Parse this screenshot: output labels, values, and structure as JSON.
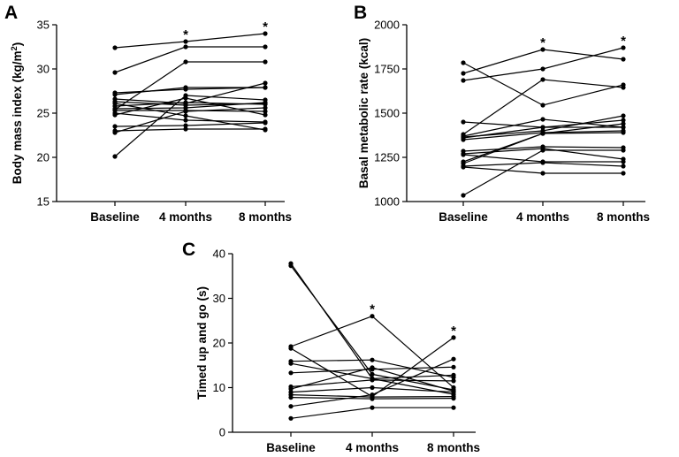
{
  "chart_data": [
    {
      "panel": "A",
      "type": "line",
      "ylabel": "Body mass index (kg/m²)",
      "ylabel_main": "Body mass index (kg/m",
      "ylabel_sup": "2",
      "ylabel_end": ")",
      "categories": [
        "Baseline",
        "4 months",
        "8 months"
      ],
      "ylim": [
        15,
        35
      ],
      "yticks": [
        15,
        20,
        25,
        30,
        35
      ],
      "significance": [
        "",
        "*",
        "*"
      ],
      "series": [
        {
          "name": "1",
          "values": [
            32.4,
            33.1,
            34.0
          ]
        },
        {
          "name": "2",
          "values": [
            29.6,
            32.5,
            32.5
          ]
        },
        {
          "name": "3",
          "values": [
            25.4,
            30.8,
            30.8
          ]
        },
        {
          "name": "4",
          "values": [
            27.3,
            27.7,
            27.9
          ]
        },
        {
          "name": "5",
          "values": [
            27.1,
            27.9,
            27.9
          ]
        },
        {
          "name": "6",
          "values": [
            26.6,
            26.1,
            28.4
          ]
        },
        {
          "name": "7",
          "values": [
            26.3,
            25.9,
            26.1
          ]
        },
        {
          "name": "8",
          "values": [
            26.1,
            24.7,
            23.1
          ]
        },
        {
          "name": "9",
          "values": [
            25.8,
            26.2,
            26.0
          ]
        },
        {
          "name": "10",
          "values": [
            25.5,
            25.6,
            26.2
          ]
        },
        {
          "name": "11",
          "values": [
            25.3,
            25.3,
            25.2
          ]
        },
        {
          "name": "12",
          "values": [
            25.0,
            24.2,
            24.0
          ]
        },
        {
          "name": "13",
          "values": [
            24.8,
            26.7,
            24.8
          ]
        },
        {
          "name": "14",
          "values": [
            23.5,
            23.6,
            23.9
          ]
        },
        {
          "name": "15",
          "values": [
            23.0,
            23.2,
            23.2
          ]
        },
        {
          "name": "16",
          "values": [
            22.8,
            25.2,
            25.6
          ]
        },
        {
          "name": "17",
          "values": [
            20.1,
            27.0,
            26.5
          ]
        }
      ]
    },
    {
      "panel": "B",
      "type": "line",
      "ylabel": "Basal metabolic rate (kcal)",
      "categories": [
        "Baseline",
        "4 months",
        "8 months"
      ],
      "ylim": [
        1000,
        2000
      ],
      "yticks": [
        1000,
        1250,
        1500,
        1750,
        2000
      ],
      "significance": [
        "",
        "*",
        "*"
      ],
      "series": [
        {
          "name": "1",
          "values": [
            1785,
            1545,
            1660
          ]
        },
        {
          "name": "2",
          "values": [
            1725,
            1860,
            1805
          ]
        },
        {
          "name": "3",
          "values": [
            1685,
            1750,
            1870
          ]
        },
        {
          "name": "4",
          "values": [
            1450,
            1420,
            1420
          ]
        },
        {
          "name": "5",
          "values": [
            1380,
            1690,
            1645
          ]
        },
        {
          "name": "6",
          "values": [
            1370,
            1465,
            1420
          ]
        },
        {
          "name": "7",
          "values": [
            1365,
            1400,
            1485
          ]
        },
        {
          "name": "8",
          "values": [
            1360,
            1420,
            1460
          ]
        },
        {
          "name": "9",
          "values": [
            1350,
            1390,
            1400
          ]
        },
        {
          "name": "10",
          "values": [
            1285,
            1310,
            1305
          ]
        },
        {
          "name": "11",
          "values": [
            1270,
            1300,
            1240
          ]
        },
        {
          "name": "12",
          "values": [
            1265,
            1225,
            1225
          ]
        },
        {
          "name": "13",
          "values": [
            1225,
            1385,
            1440
          ]
        },
        {
          "name": "14",
          "values": [
            1215,
            1385,
            1390
          ]
        },
        {
          "name": "15",
          "values": [
            1200,
            1220,
            1200
          ]
        },
        {
          "name": "16",
          "values": [
            1195,
            1160,
            1160
          ]
        },
        {
          "name": "17",
          "values": [
            1035,
            1290,
            1290
          ]
        }
      ]
    },
    {
      "panel": "C",
      "type": "line",
      "ylabel": "Timed up and go (s)",
      "categories": [
        "Baseline",
        "4 months",
        "8 months"
      ],
      "ylim": [
        0,
        40
      ],
      "yticks": [
        0,
        10,
        20,
        30,
        40
      ],
      "significance": [
        "",
        "*",
        "*"
      ],
      "series": [
        {
          "name": "1",
          "values": [
            37.8,
            12.0,
            8.5
          ]
        },
        {
          "name": "2",
          "values": [
            37.3,
            13.0,
            9.5
          ]
        },
        {
          "name": "3",
          "values": [
            19.2,
            26.0,
            10.0
          ]
        },
        {
          "name": "4",
          "values": [
            18.8,
            8.0,
            21.2
          ]
        },
        {
          "name": "5",
          "values": [
            15.9,
            16.2,
            12.3
          ]
        },
        {
          "name": "6",
          "values": [
            15.4,
            12.0,
            12.8
          ]
        },
        {
          "name": "7",
          "values": [
            13.3,
            14.1,
            14.6
          ]
        },
        {
          "name": "8",
          "values": [
            10.2,
            11.7,
            11.5
          ]
        },
        {
          "name": "9",
          "values": [
            9.7,
            14.5,
            9.2
          ]
        },
        {
          "name": "10",
          "values": [
            9.0,
            10.0,
            9.0
          ]
        },
        {
          "name": "11",
          "values": [
            8.4,
            7.9,
            8.0
          ]
        },
        {
          "name": "12",
          "values": [
            7.8,
            7.5,
            7.6
          ]
        },
        {
          "name": "13",
          "values": [
            5.8,
            8.4,
            16.4
          ]
        },
        {
          "name": "14",
          "values": [
            3.1,
            5.5,
            5.5
          ]
        }
      ]
    }
  ],
  "colors": {
    "line": "#000000",
    "marker": "#000000",
    "axis": "#000000"
  }
}
